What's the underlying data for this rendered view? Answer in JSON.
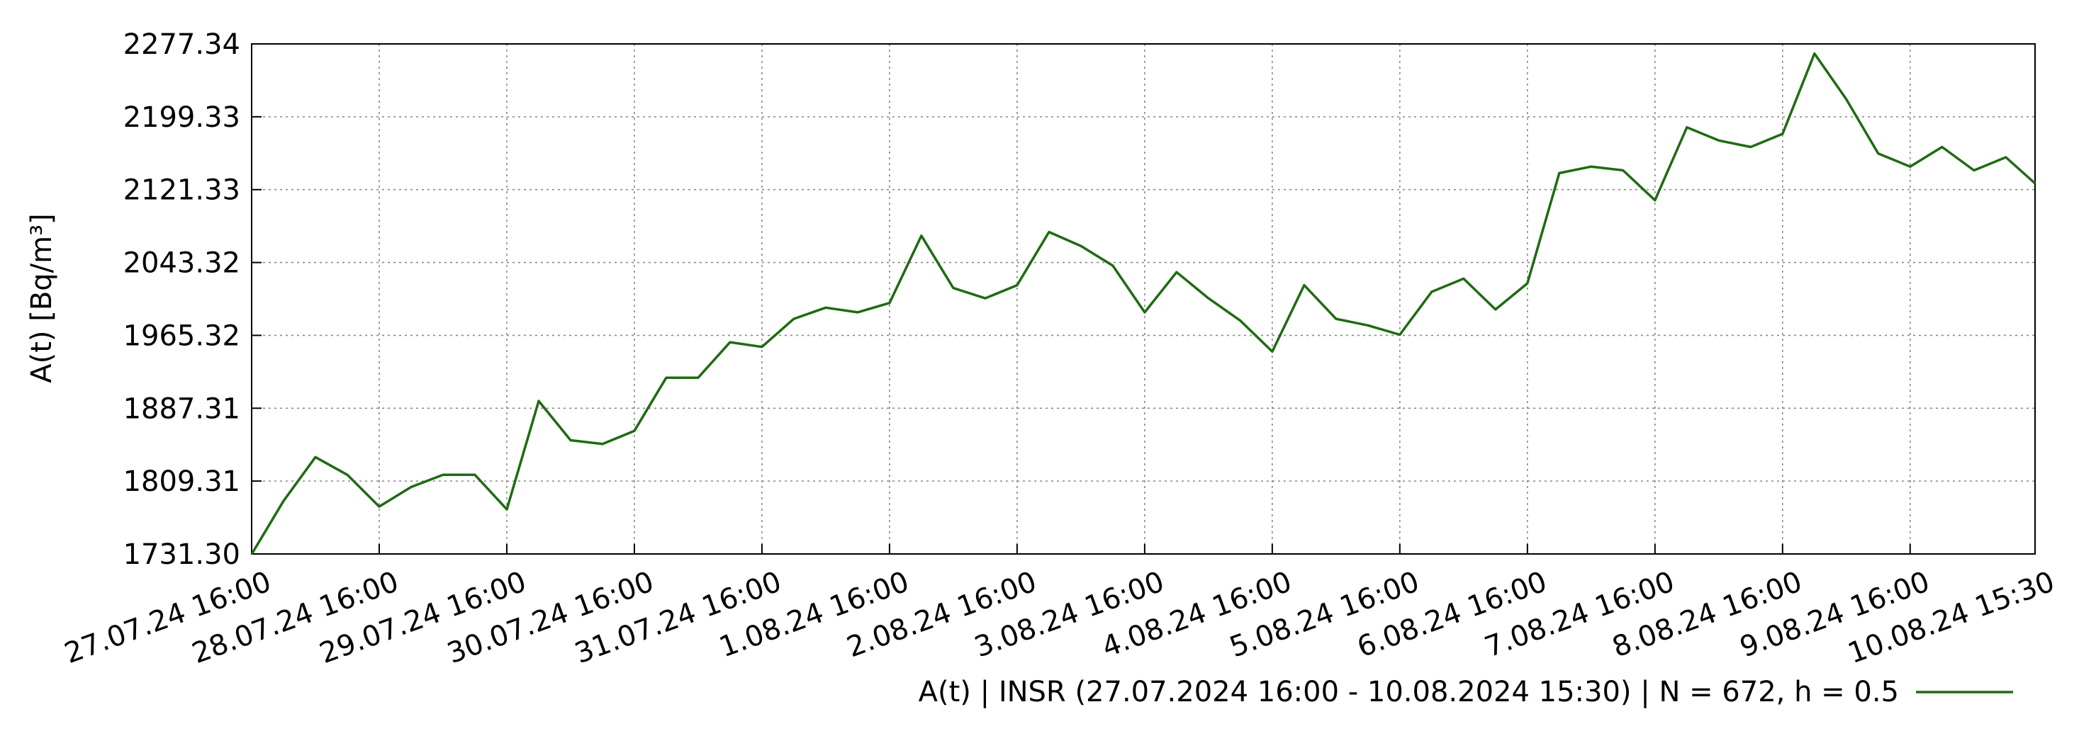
{
  "chart_data": {
    "type": "line",
    "y_label": "A(t)  [Bq/m³]",
    "x": [
      "27.07.24 16:00",
      "27.07.24 22:00",
      "28.07.24 04:00",
      "28.07.24 10:00",
      "28.07.24 16:00",
      "28.07.24 22:00",
      "29.07.24 04:00",
      "29.07.24 10:00",
      "29.07.24 16:00",
      "29.07.24 22:00",
      "30.07.24 04:00",
      "30.07.24 10:00",
      "30.07.24 16:00",
      "30.07.24 22:00",
      "31.07.24 04:00",
      "31.07.24 10:00",
      "31.07.24 16:00",
      "31.07.24 22:00",
      "1.08.24 04:00",
      "1.08.24 10:00",
      "1.08.24 16:00",
      "1.08.24 22:00",
      "2.08.24 04:00",
      "2.08.24 10:00",
      "2.08.24 16:00",
      "2.08.24 22:00",
      "3.08.24 04:00",
      "3.08.24 10:00",
      "3.08.24 16:00",
      "3.08.24 22:00",
      "4.08.24 04:00",
      "4.08.24 10:00",
      "4.08.24 16:00",
      "4.08.24 22:00",
      "5.08.24 04:00",
      "5.08.24 10:00",
      "5.08.24 16:00",
      "5.08.24 22:00",
      "6.08.24 04:00",
      "6.08.24 10:00",
      "6.08.24 16:00",
      "6.08.24 22:00",
      "7.08.24 04:00",
      "7.08.24 10:00",
      "7.08.24 16:00",
      "7.08.24 22:00",
      "8.08.24 04:00",
      "8.08.24 10:00",
      "8.08.24 16:00",
      "8.08.24 22:00",
      "9.08.24 04:00",
      "9.08.24 10:00",
      "9.08.24 16:00",
      "9.08.24 22:00",
      "10.08.24 04:00",
      "10.08.24 10:00",
      "10.08.24 15:30"
    ],
    "series": [
      {
        "name": "A(t) | INSR (27.07.2024 16:00 - 10.08.2024 15:30) | N = 672, h = 0.5",
        "color": "#1f6b12",
        "values": [
          1731,
          1788,
          1835,
          1816,
          1782,
          1803,
          1816,
          1816,
          1779,
          1895,
          1853,
          1849,
          1863,
          1920,
          1920,
          1958,
          1953,
          1983,
          1995,
          1990,
          2000,
          2072,
          2016,
          2005,
          2019,
          2076,
          2061,
          2040,
          1990,
          2033,
          2005,
          1981,
          1948,
          2019,
          1983,
          1976,
          1966,
          2012,
          2026,
          1993,
          2021,
          2139,
          2146,
          2142,
          2110,
          2188,
          2174,
          2167,
          2181,
          2267,
          2218,
          2160,
          2146,
          2167,
          2142,
          2156,
          2128
        ]
      }
    ],
    "xlim": [
      "27.07.24 16:00",
      "10.08.24 15:30"
    ],
    "xticks": [
      "27.07.24 16:00",
      "28.07.24 16:00",
      "29.07.24 16:00",
      "30.07.24 16:00",
      "31.07.24 16:00",
      "1.08.24 16:00",
      "2.08.24 16:00",
      "3.08.24 16:00",
      "4.08.24 16:00",
      "5.08.24 16:00",
      "6.08.24 16:00",
      "7.08.24 16:00",
      "8.08.24 16:00",
      "9.08.24 16:00",
      "10.08.24 15:30"
    ],
    "ylim": [
      1731.3,
      2277.34
    ],
    "yticks": [
      {
        "value": 1731.3,
        "label": "1731.30"
      },
      1809.31,
      1887.31,
      1965.32,
      2043.32,
      2121.33,
      2199.33,
      2277.34
    ],
    "grid": true
  }
}
